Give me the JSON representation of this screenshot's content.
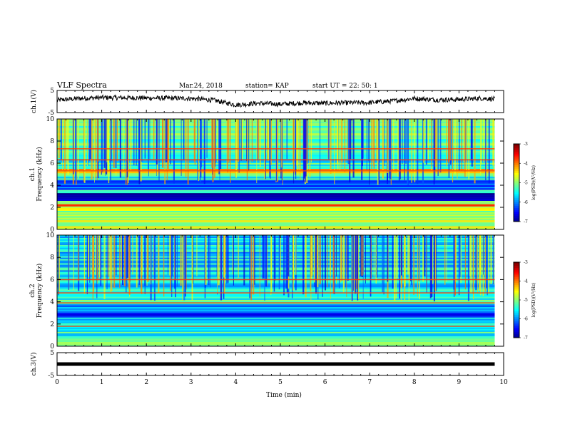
{
  "header": {
    "title": "VLF Spectra",
    "date": "Mar.24, 2018",
    "station": "station= KAP",
    "start": "start  UT  =   22: 50: 1"
  },
  "chart_data": [
    {
      "type": "line",
      "panel": "ch1-waveform",
      "ylabel": "ch.1(V)",
      "yticks": [
        "5",
        "-5"
      ],
      "ylim": [
        -5,
        5
      ],
      "x": [
        0,
        0.5,
        1,
        1.5,
        2,
        2.5,
        3,
        3.5,
        4,
        4.5,
        5,
        5.5,
        6,
        6.5,
        7,
        7.5,
        8,
        8.5,
        9,
        9.5,
        9.8
      ],
      "values": [
        0.6,
        1.4,
        1.8,
        1.7,
        1.6,
        1.5,
        1.4,
        0.6,
        -1.5,
        -0.8,
        -1.2,
        -0.6,
        -0.8,
        -0.6,
        -0.5,
        0.2,
        1.4,
        0.8,
        0.9,
        1.5,
        1.1
      ],
      "xlim": [
        0,
        10
      ]
    },
    {
      "type": "heatmap",
      "panel": "ch1-spectrogram",
      "ylabel": "ch.1",
      "ylabel2": "Frequency (kHz)",
      "yticks": [
        "0",
        "2",
        "4",
        "6",
        "8",
        "10"
      ],
      "ylim": [
        0,
        10
      ],
      "xlim": [
        0,
        10
      ],
      "data_end_min": 9.8,
      "bands": [
        {
          "from": 0,
          "to": 0.3,
          "level": -4.8
        },
        {
          "from": 0.3,
          "to": 0.7,
          "level": -5.3
        },
        {
          "from": 0.7,
          "to": 1.8,
          "level": -4.8
        },
        {
          "from": 1.8,
          "to": 2.1,
          "level": -4.5
        },
        {
          "from": 2.1,
          "to": 2.3,
          "level": -3.8
        },
        {
          "from": 2.3,
          "to": 2.6,
          "level": -5.3
        },
        {
          "from": 2.6,
          "to": 2.9,
          "level": -6.6
        },
        {
          "from": 2.9,
          "to": 3.3,
          "level": -6.9
        },
        {
          "from": 3.3,
          "to": 3.6,
          "level": -5.6
        },
        {
          "from": 3.6,
          "to": 4.5,
          "level": -6.1
        },
        {
          "from": 4.5,
          "to": 5.1,
          "level": -5.4
        },
        {
          "from": 5.1,
          "to": 5.5,
          "level": -4.3
        },
        {
          "from": 5.5,
          "to": 7.0,
          "level": -5.4
        },
        {
          "from": 7.0,
          "to": 10,
          "level": -5.1
        }
      ],
      "lines_khz": [
        2.2,
        5.3,
        6.3,
        7.3
      ]
    },
    {
      "type": "heatmap",
      "panel": "ch2-spectrogram",
      "ylabel": "ch.2",
      "ylabel2": "Frequency (kHz)",
      "yticks": [
        "0",
        "2",
        "4",
        "6",
        "8",
        "10"
      ],
      "ylim": [
        0,
        10
      ],
      "xlim": [
        0,
        10
      ],
      "data_end_min": 9.8,
      "bands": [
        {
          "from": 0,
          "to": 0.4,
          "level": -5.0
        },
        {
          "from": 0.4,
          "to": 1.8,
          "level": -5.4
        },
        {
          "from": 1.8,
          "to": 2.6,
          "level": -5.6
        },
        {
          "from": 2.6,
          "to": 3.0,
          "level": -6.7
        },
        {
          "from": 3.0,
          "to": 3.8,
          "level": -6.1
        },
        {
          "from": 3.8,
          "to": 4.8,
          "level": -5.3
        },
        {
          "from": 4.8,
          "to": 10,
          "level": -5.6
        }
      ],
      "lines_khz": [
        1.8,
        3.9,
        4.8,
        6.0
      ]
    },
    {
      "type": "line",
      "panel": "ch3-waveform",
      "ylabel": "ch.3(V)",
      "yticks": [
        "5",
        "-5"
      ],
      "ylim": [
        -5,
        5
      ],
      "x": [
        0,
        9.8
      ],
      "values": [
        0,
        0
      ],
      "xlim": [
        0,
        10
      ],
      "xlabel": "Time (min)",
      "xticks": [
        "0",
        "1",
        "2",
        "3",
        "4",
        "5",
        "6",
        "7",
        "8",
        "9",
        "10"
      ]
    }
  ],
  "colorbars": [
    {
      "ticks": [
        "-3",
        "-4",
        "-5",
        "-6",
        "-7"
      ],
      "range": [
        -7,
        -3
      ],
      "label": "log(PSD)(V²/Hz)"
    },
    {
      "ticks": [
        "-3",
        "-4",
        "-5",
        "-6",
        "-7"
      ],
      "range": [
        -7,
        -3
      ],
      "label": "log(PSD)(V²/Hz)"
    }
  ]
}
